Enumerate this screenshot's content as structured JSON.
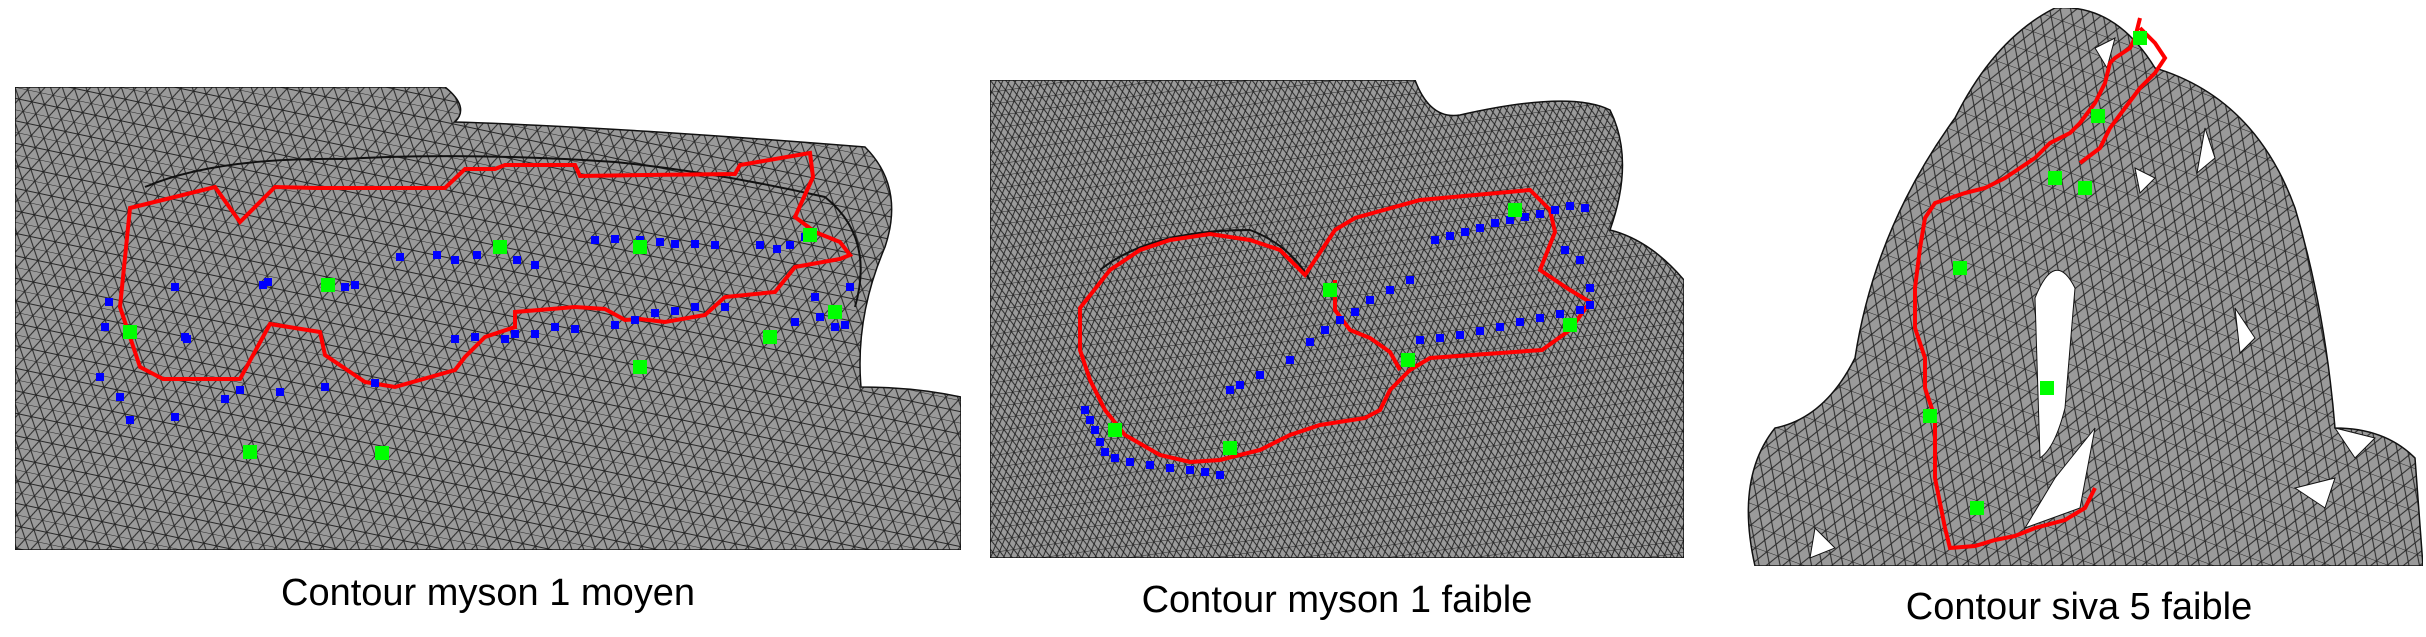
{
  "figure": {
    "panels": [
      {
        "caption": "Contour myson 1 moyen"
      },
      {
        "caption": "Contour myson 1 faible"
      },
      {
        "caption": "Contour siva 5 faible"
      }
    ]
  },
  "colors": {
    "mesh_fill": "#9a9a9a",
    "mesh_edge": "#111111",
    "contour": "#ff0000",
    "marker_blue": "#0000ff",
    "marker_green": "#00ff00",
    "hole": "#ffffff"
  }
}
